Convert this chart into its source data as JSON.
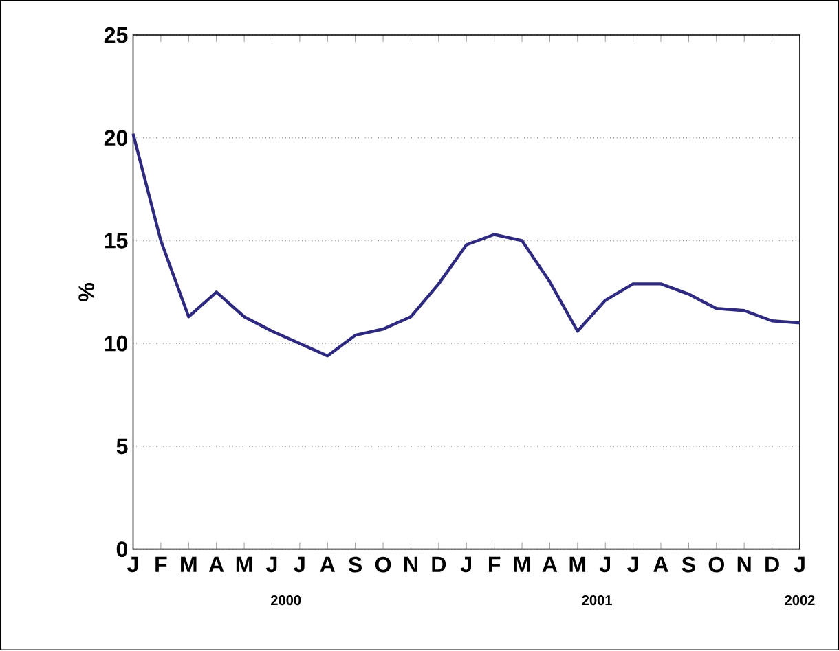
{
  "chart_data": {
    "type": "line",
    "ylabel": "%",
    "categories": [
      "J",
      "F",
      "M",
      "A",
      "M",
      "J",
      "J",
      "A",
      "S",
      "O",
      "N",
      "D",
      "J",
      "F",
      "M",
      "A",
      "M",
      "J",
      "J",
      "A",
      "S",
      "O",
      "N",
      "D",
      "J"
    ],
    "series": [
      {
        "color": "#2e2a80",
        "values": [
          20.2,
          15.0,
          11.3,
          12.5,
          11.3,
          10.6,
          10.0,
          9.4,
          10.4,
          10.7,
          11.3,
          12.9,
          14.8,
          15.3,
          15.0,
          13.0,
          10.6,
          12.1,
          12.9,
          12.9,
          12.4,
          11.7,
          11.6,
          11.1,
          11.0
        ]
      }
    ],
    "ylim": [
      0,
      25
    ],
    "yticks": [
      0,
      5,
      10,
      15,
      20,
      25
    ],
    "grid": "y",
    "annotations": [
      "2000",
      "2001",
      "2002"
    ]
  }
}
